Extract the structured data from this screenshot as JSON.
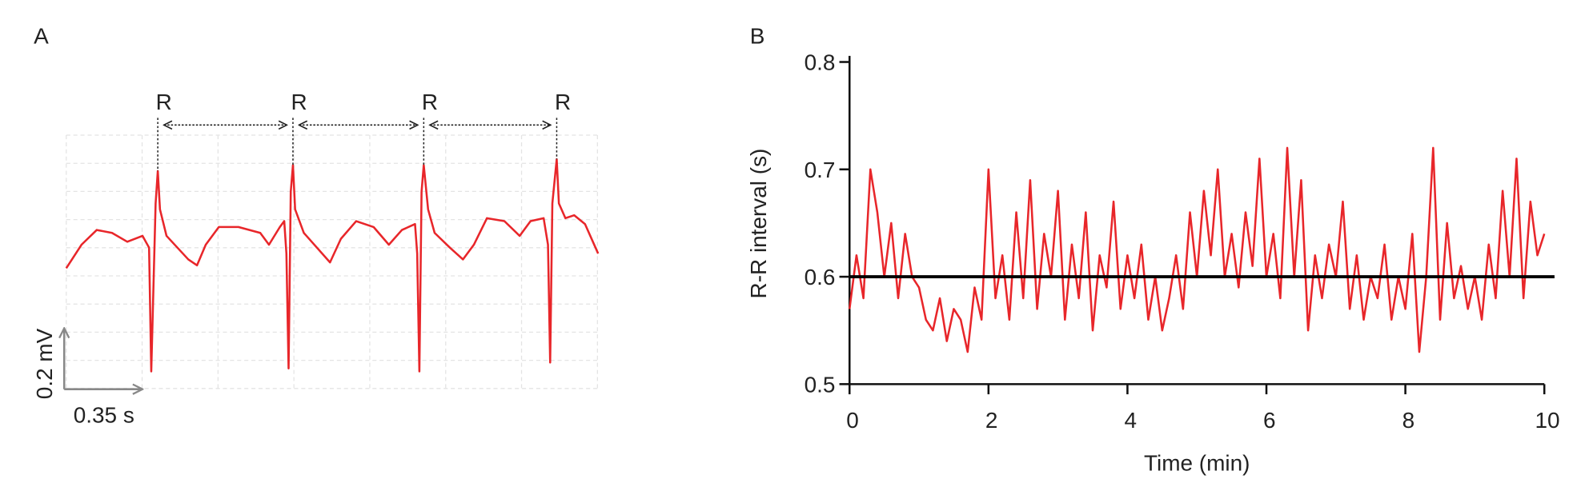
{
  "chart_data": [
    {
      "type": "ecg",
      "panel_label": "A",
      "color": "#e8262a",
      "x": [
        0,
        0.07,
        0.14,
        0.21,
        0.28,
        0.35,
        0.38,
        0.39,
        0.41,
        0.42,
        0.43,
        0.46,
        0.51,
        0.56,
        0.6,
        0.64,
        0.7,
        0.79,
        0.89,
        0.93,
        0.98,
        1,
        1.01,
        1.02,
        1.03,
        1.04,
        1.05,
        1.09,
        1.15,
        1.21,
        1.26,
        1.33,
        1.41,
        1.48,
        1.54,
        1.6,
        1.61,
        1.62,
        1.63,
        1.64,
        1.66,
        1.69,
        1.76,
        1.82,
        1.87,
        1.93,
        2.01,
        2.08,
        2.13,
        2.19,
        2.21,
        2.22,
        2.23,
        2.25,
        2.26,
        2.29,
        2.33,
        2.38,
        2.44
      ],
      "values": [
        -0.1,
        -0.02,
        0.03,
        0.02,
        -0.01,
        0.01,
        -0.03,
        -0.45,
        0.12,
        0.23,
        0.1,
        0.01,
        -0.03,
        -0.07,
        -0.09,
        -0.02,
        0.04,
        0.04,
        0.02,
        -0.02,
        0.04,
        0.06,
        -0.05,
        -0.44,
        0.16,
        0.25,
        0.1,
        0.02,
        -0.03,
        -0.08,
        0,
        0.06,
        0.04,
        -0.02,
        0.03,
        0.05,
        -0.05,
        -0.45,
        0.16,
        0.25,
        0.1,
        0.02,
        -0.03,
        -0.07,
        -0.02,
        0.07,
        0.06,
        0.01,
        0.06,
        0.07,
        -0.02,
        -0.42,
        0.12,
        0.27,
        0.12,
        0.07,
        0.08,
        0.05,
        -0.05
      ],
      "peak_labels": [
        "R",
        "R",
        "R",
        "R"
      ],
      "scale_bar": {
        "x": 0.35,
        "x_label": "0.35 s",
        "y": 0.2,
        "y_label": "0.2 mV"
      }
    },
    {
      "type": "line",
      "panel_label": "B",
      "xlabel": "Time (min)",
      "ylabel": "R-R interval (s)",
      "x": [
        0,
        0.1,
        0.2,
        0.3,
        0.4,
        0.5,
        0.6,
        0.7,
        0.8,
        0.9,
        1,
        1.1,
        1.2,
        1.3,
        1.4,
        1.5,
        1.6,
        1.7,
        1.8,
        1.9,
        2,
        2.1,
        2.2,
        2.3,
        2.4,
        2.5,
        2.6,
        2.7,
        2.8,
        2.9,
        3,
        3.1,
        3.2,
        3.3,
        3.4,
        3.5,
        3.6,
        3.7,
        3.8,
        3.9,
        4,
        4.1,
        4.2,
        4.3,
        4.4,
        4.5,
        4.6,
        4.7,
        4.8,
        4.9,
        5,
        5.1,
        5.2,
        5.3,
        5.4,
        5.5,
        5.6,
        5.7,
        5.8,
        5.9,
        6,
        6.1,
        6.2,
        6.3,
        6.4,
        6.5,
        6.6,
        6.7,
        6.8,
        6.9,
        7,
        7.1,
        7.2,
        7.3,
        7.4,
        7.5,
        7.6,
        7.7,
        7.8,
        7.9,
        8,
        8.1,
        8.2,
        8.3,
        8.4,
        8.5,
        8.6,
        8.7,
        8.8,
        8.9,
        9,
        9.1,
        9.2,
        9.3,
        9.4,
        9.5,
        9.6,
        9.7,
        9.8,
        9.9,
        10
      ],
      "series": [
        {
          "color": "#e8262a",
          "values": [
            0.57,
            0.62,
            0.58,
            0.7,
            0.66,
            0.6,
            0.65,
            0.58,
            0.64,
            0.6,
            0.59,
            0.56,
            0.55,
            0.58,
            0.54,
            0.57,
            0.56,
            0.53,
            0.59,
            0.56,
            0.7,
            0.58,
            0.62,
            0.56,
            0.66,
            0.58,
            0.69,
            0.57,
            0.64,
            0.6,
            0.68,
            0.56,
            0.63,
            0.58,
            0.66,
            0.55,
            0.62,
            0.59,
            0.67,
            0.57,
            0.62,
            0.58,
            0.63,
            0.56,
            0.6,
            0.55,
            0.58,
            0.62,
            0.57,
            0.66,
            0.6,
            0.68,
            0.62,
            0.7,
            0.6,
            0.64,
            0.59,
            0.66,
            0.61,
            0.71,
            0.6,
            0.64,
            0.58,
            0.72,
            0.6,
            0.69,
            0.55,
            0.62,
            0.58,
            0.63,
            0.6,
            0.67,
            0.57,
            0.62,
            0.56,
            0.6,
            0.58,
            0.63,
            0.56,
            0.6,
            0.57,
            0.64,
            0.53,
            0.6,
            0.72,
            0.56,
            0.65,
            0.58,
            0.61,
            0.57,
            0.6,
            0.56,
            0.63,
            0.58,
            0.68,
            0.6,
            0.71,
            0.58,
            0.67,
            0.62,
            0.64
          ]
        }
      ],
      "hline": {
        "value": 0.6,
        "color": "#000000"
      },
      "xlim": [
        0,
        10
      ],
      "ylim": [
        0.5,
        0.8
      ],
      "xticks": [
        0,
        2,
        4,
        6,
        8,
        10
      ],
      "yticks": [
        0.5,
        0.6,
        0.7,
        0.8
      ]
    }
  ]
}
